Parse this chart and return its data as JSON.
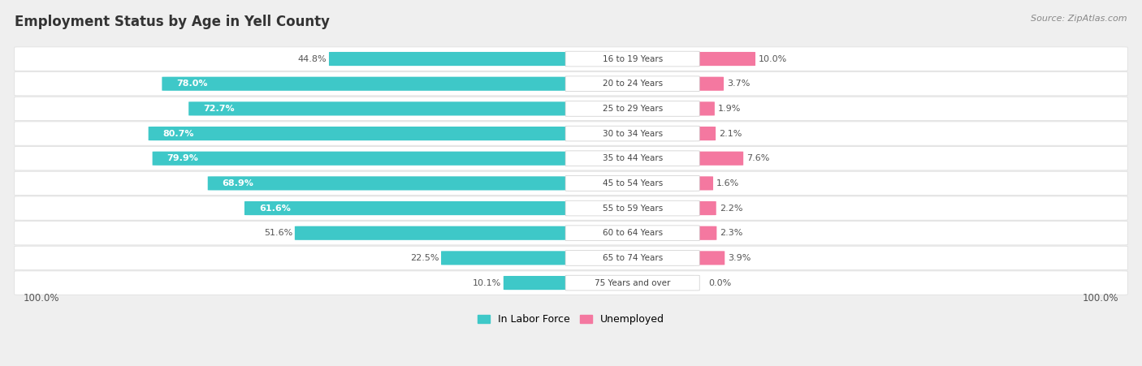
{
  "title": "Employment Status by Age in Yell County",
  "source": "Source: ZipAtlas.com",
  "categories": [
    "16 to 19 Years",
    "20 to 24 Years",
    "25 to 29 Years",
    "30 to 34 Years",
    "35 to 44 Years",
    "45 to 54 Years",
    "55 to 59 Years",
    "60 to 64 Years",
    "65 to 74 Years",
    "75 Years and over"
  ],
  "labor_force": [
    44.8,
    78.0,
    72.7,
    80.7,
    79.9,
    68.9,
    61.6,
    51.6,
    22.5,
    10.1
  ],
  "unemployed": [
    10.0,
    3.7,
    1.9,
    2.1,
    7.6,
    1.6,
    2.2,
    2.3,
    3.9,
    0.0
  ],
  "labor_color": "#3ec8c8",
  "unemployed_color": "#f478a0",
  "labor_color_light": "#8adede",
  "unemployed_color_light": "#f8b0c8",
  "bg_color": "#efefef",
  "row_bg_color": "#f8f8f8",
  "label_inside_color": "#ffffff",
  "label_outside_color": "#555555",
  "lf_inside_threshold": 60.0
}
